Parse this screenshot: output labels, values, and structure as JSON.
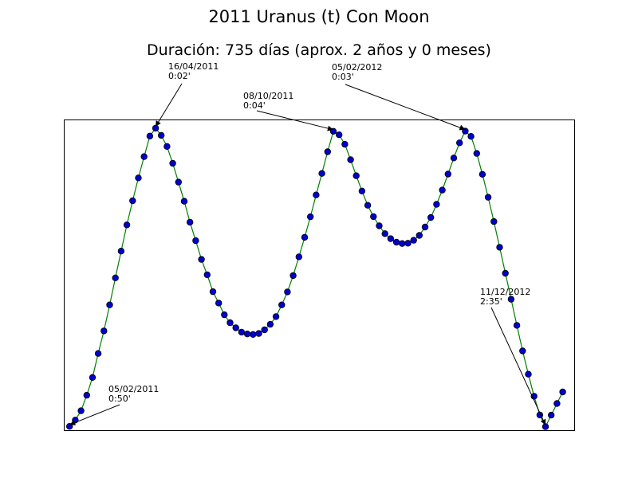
{
  "chart_data": {
    "type": "line",
    "title": "2011 Uranus (t) Con Moon",
    "subtitle": "Duración: 735 días (aprox. 2 años y 0 meses)",
    "xlabel": "",
    "ylabel": "",
    "grid": false,
    "colors": {
      "line": "#008000",
      "marker_fill": "#0000cc",
      "marker_edge": "#000000"
    },
    "series": [
      {
        "segments": [
          {
            "x": [
              0,
              1,
              2,
              3,
              4,
              5,
              6,
              7,
              8,
              9,
              10,
              11,
              12,
              13,
              14,
              15,
              16,
              17,
              18,
              19,
              20,
              21,
              22,
              23,
              24,
              25,
              26,
              27,
              28,
              29,
              30,
              31,
              32,
              33,
              34,
              35,
              36,
              37,
              38,
              39,
              40,
              41,
              42,
              43,
              44,
              45,
              46,
              47,
              48,
              49,
              50,
              51,
              52,
              53,
              54,
              55,
              56,
              57,
              58,
              59,
              60,
              61,
              62,
              63,
              64,
              65,
              66,
              67,
              68,
              69,
              70,
              71,
              72,
              73,
              74,
              75,
              76,
              77,
              78,
              79,
              80,
              81,
              82,
              83,
              84,
              85,
              86
            ],
            "y": [
              3.0,
              57.0,
              138.0,
              272.0,
              425.0,
              632.0,
              826.0,
              1051.0,
              1284.0,
              1515.0,
              1741.0,
              1949.0,
              2146.0,
              2330.0,
              2507.0,
              2575.0,
              2513.0,
              2418.0,
              2272.0,
              2110.0,
              1945.0,
              1764.0,
              1605.0,
              1443.0,
              1311.0,
              1165.0,
              1067.0,
              966.0,
              897.0,
              853.0,
              816.0,
              800.0,
              796.0,
              804.0,
              836.0,
              883.0,
              950.0,
              1051.0,
              1163.0,
              1304.0,
              1465.0,
              1634.0,
              1811.0,
              1999.0,
              2185.0,
              2372.0,
              2548.0,
              2518.0,
              2436.0,
              2303.0,
              2165.0,
              2033.0,
              1910.0,
              1812.0,
              1733.0,
              1665.0,
              1622.0,
              1592.0,
              1580.0,
              1583.0,
              1608.0,
              1650.0,
              1722.0,
              1805.0,
              1918.0,
              2041.0,
              2179.0,
              2318.0,
              2449.0,
              2550.0,
              2504.0,
              2357.0,
              2177.0,
              1979.0,
              1770.0,
              1548.0,
              1324.0,
              1100.0,
              874.0,
              654.0,
              453.0,
              263.0,
              101.0,
              0.0,
              100.0,
              200.0,
              300.0
            ]
          }
        ]
      }
    ],
    "annotations": [
      {
        "date": "05/02/2011",
        "time": "0:50'"
      },
      {
        "date": "16/04/2011",
        "time": "0:02'"
      },
      {
        "date": "08/10/2011",
        "time": "0:04'"
      },
      {
        "date": "05/02/2012",
        "time": "0:03'"
      },
      {
        "date": "11/12/2012",
        "time": "2:35'"
      }
    ]
  }
}
